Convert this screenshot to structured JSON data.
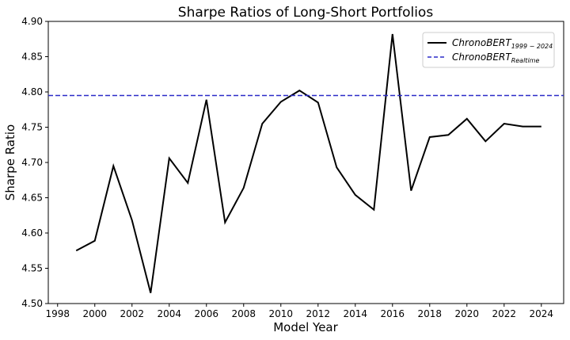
{
  "chart_data": {
    "type": "line",
    "title": "Sharpe Ratios of Long-Short Portfolios",
    "xlabel": "Model Year",
    "ylabel": "Sharpe Ratio",
    "xlim": [
      1997.5,
      2025.2
    ],
    "ylim": [
      4.5,
      4.9
    ],
    "xticks": [
      1998,
      2000,
      2002,
      2004,
      2006,
      2008,
      2010,
      2012,
      2014,
      2016,
      2018,
      2020,
      2022,
      2024
    ],
    "yticks": [
      4.5,
      4.55,
      4.6,
      4.65,
      4.7,
      4.75,
      4.8,
      4.85,
      4.9
    ],
    "ytick_labels": [
      "4.50",
      "4.55",
      "4.60",
      "4.65",
      "4.70",
      "4.75",
      "4.80",
      "4.85",
      "4.90"
    ],
    "legend_position": "upper-right",
    "series": [
      {
        "name": "ChronoBERT",
        "name_subscript": "1999 − 2024",
        "style": "solid",
        "color": "#000000",
        "x": [
          1999,
          2000,
          2001,
          2002,
          2003,
          2004,
          2005,
          2006,
          2007,
          2008,
          2009,
          2010,
          2011,
          2012,
          2013,
          2014,
          2015,
          2016,
          2017,
          2018,
          2019,
          2020,
          2021,
          2022,
          2023,
          2024
        ],
        "y": [
          4.575,
          4.589,
          4.695,
          4.618,
          4.515,
          4.706,
          4.671,
          4.789,
          4.615,
          4.664,
          4.755,
          4.786,
          4.802,
          4.785,
          4.693,
          4.654,
          4.633,
          4.882,
          4.66,
          4.736,
          4.739,
          4.762,
          4.73,
          4.755,
          4.751,
          4.751
        ]
      },
      {
        "name": "ChronoBERT",
        "name_subscript": "Realtime",
        "style": "dashed",
        "color": "#2b2bc8",
        "hline": 4.795
      }
    ]
  }
}
